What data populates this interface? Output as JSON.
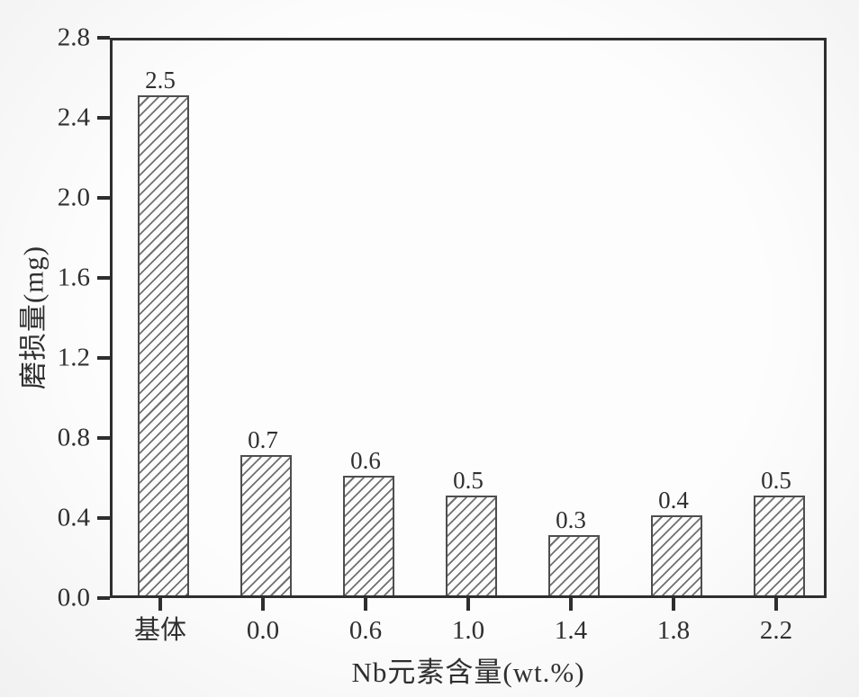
{
  "chart_data": {
    "type": "bar",
    "title": "",
    "xlabel": "Nb元素含量(wt.%)",
    "ylabel": "磨损量(mg)",
    "categories": [
      "基体",
      "0.0",
      "0.6",
      "1.0",
      "1.4",
      "1.8",
      "2.2"
    ],
    "values": [
      2.5,
      0.7,
      0.6,
      0.5,
      0.3,
      0.4,
      0.5
    ],
    "value_labels": [
      "2.5",
      "0.7",
      "0.6",
      "0.5",
      "0.3",
      "0.4",
      "0.5"
    ],
    "ylim": [
      0,
      2.8
    ],
    "ytick_step": 0.4,
    "ytick_labels": [
      "0.0",
      "0.4",
      "0.8",
      "1.2",
      "1.6",
      "2.0",
      "2.4",
      "2.8"
    ],
    "grid": false,
    "legend": "none",
    "style": {
      "bar_fill": "diagonal-hatch",
      "hatch_direction": "forward-slash",
      "bar_outline_color": "#4e4e4e",
      "hatch_color": "#707070",
      "axis_color": "#2e2e2e",
      "text_color": "#2f2f2f",
      "background_color": "#fdfdfd"
    }
  }
}
